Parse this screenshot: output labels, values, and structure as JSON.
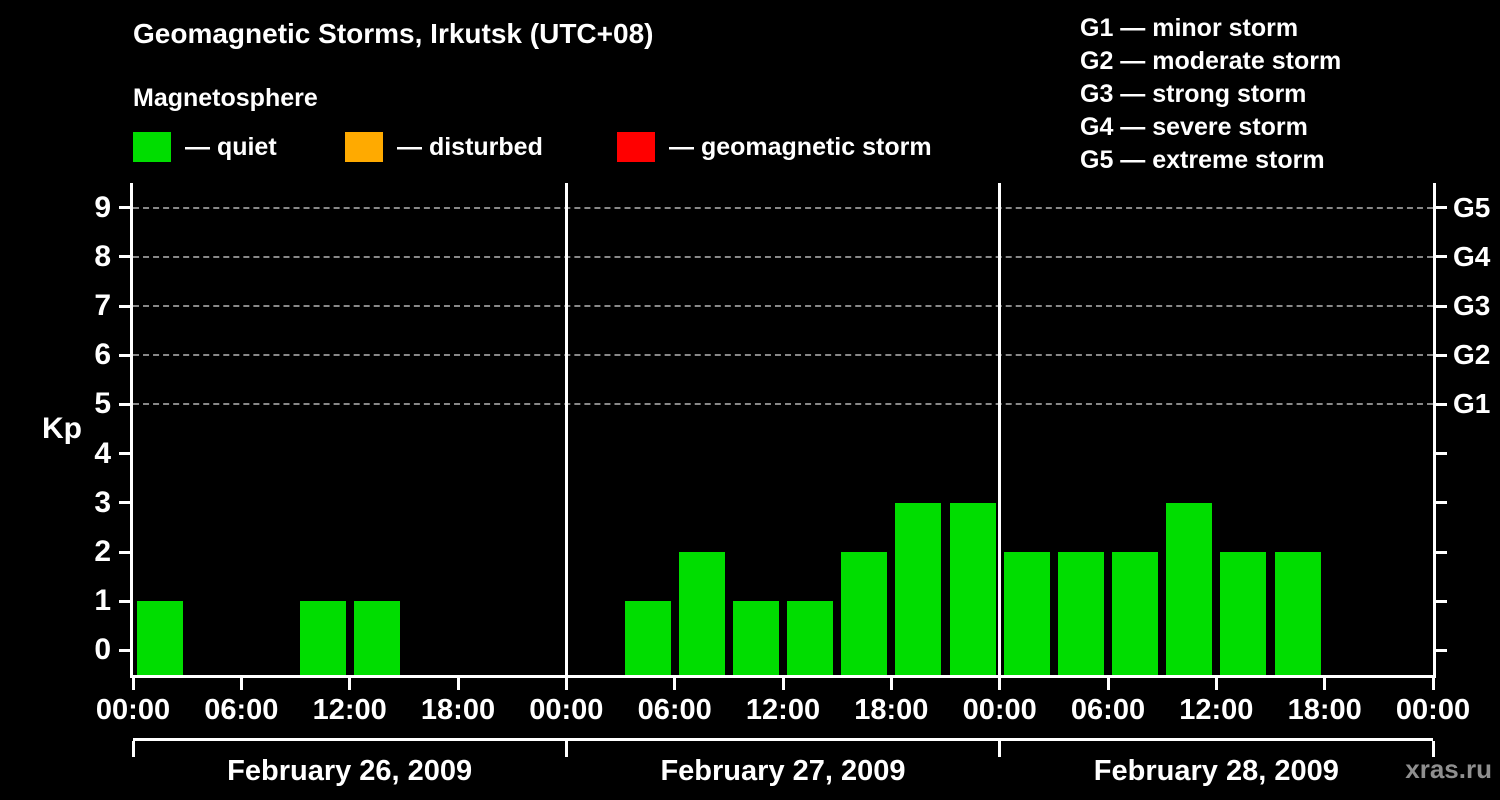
{
  "header": {
    "title": "Geomagnetic Storms, Irkutsk (UTC+08)",
    "subtitle": "Magnetosphere"
  },
  "legend": {
    "items": [
      {
        "label": "— quiet",
        "color": "#00dd00"
      },
      {
        "label": "— disturbed",
        "color": "#ffaa00"
      },
      {
        "label": "— geomagnetic storm",
        "color": "#ff0000"
      }
    ]
  },
  "g_legend": [
    "G1 — minor storm",
    "G2 — moderate storm",
    "G3 — strong storm",
    "G4 — severe storm",
    "G5 — extreme storm"
  ],
  "watermark": "xras.ru",
  "chart_data": {
    "type": "bar",
    "title": "Geomagnetic Storms, Irkutsk (UTC+08)",
    "ylabel": "Kp",
    "ylim": [
      -0.5,
      9.5
    ],
    "y_ticks": [
      0,
      1,
      2,
      3,
      4,
      5,
      6,
      7,
      8,
      9
    ],
    "grid_levels": [
      5,
      6,
      7,
      8,
      9
    ],
    "grid_on": true,
    "interval_hours": 3,
    "x_tick_labels": [
      "00:00",
      "06:00",
      "12:00",
      "18:00",
      "00:00",
      "06:00",
      "12:00",
      "18:00",
      "00:00",
      "06:00",
      "12:00",
      "18:00",
      "00:00"
    ],
    "right_axis_labels": [
      {
        "label": "G1",
        "kp": 5
      },
      {
        "label": "G2",
        "kp": 6
      },
      {
        "label": "G3",
        "kp": 7
      },
      {
        "label": "G4",
        "kp": 8
      },
      {
        "label": "G5",
        "kp": 9
      }
    ],
    "days": [
      {
        "date": "February 26, 2009",
        "kp": [
          1,
          0,
          0,
          1,
          1,
          0,
          0,
          0
        ]
      },
      {
        "date": "February 27, 2009",
        "kp": [
          0,
          1,
          2,
          1,
          1,
          2,
          3,
          3
        ]
      },
      {
        "date": "February 28, 2009",
        "kp": [
          2,
          2,
          2,
          3,
          2,
          2,
          null,
          null
        ]
      }
    ],
    "colors": {
      "quiet": "#00dd00",
      "disturbed": "#ffaa00",
      "storm": "#ff0000",
      "grid": "#888888",
      "axis": "#ffffff",
      "background": "#000000"
    }
  }
}
